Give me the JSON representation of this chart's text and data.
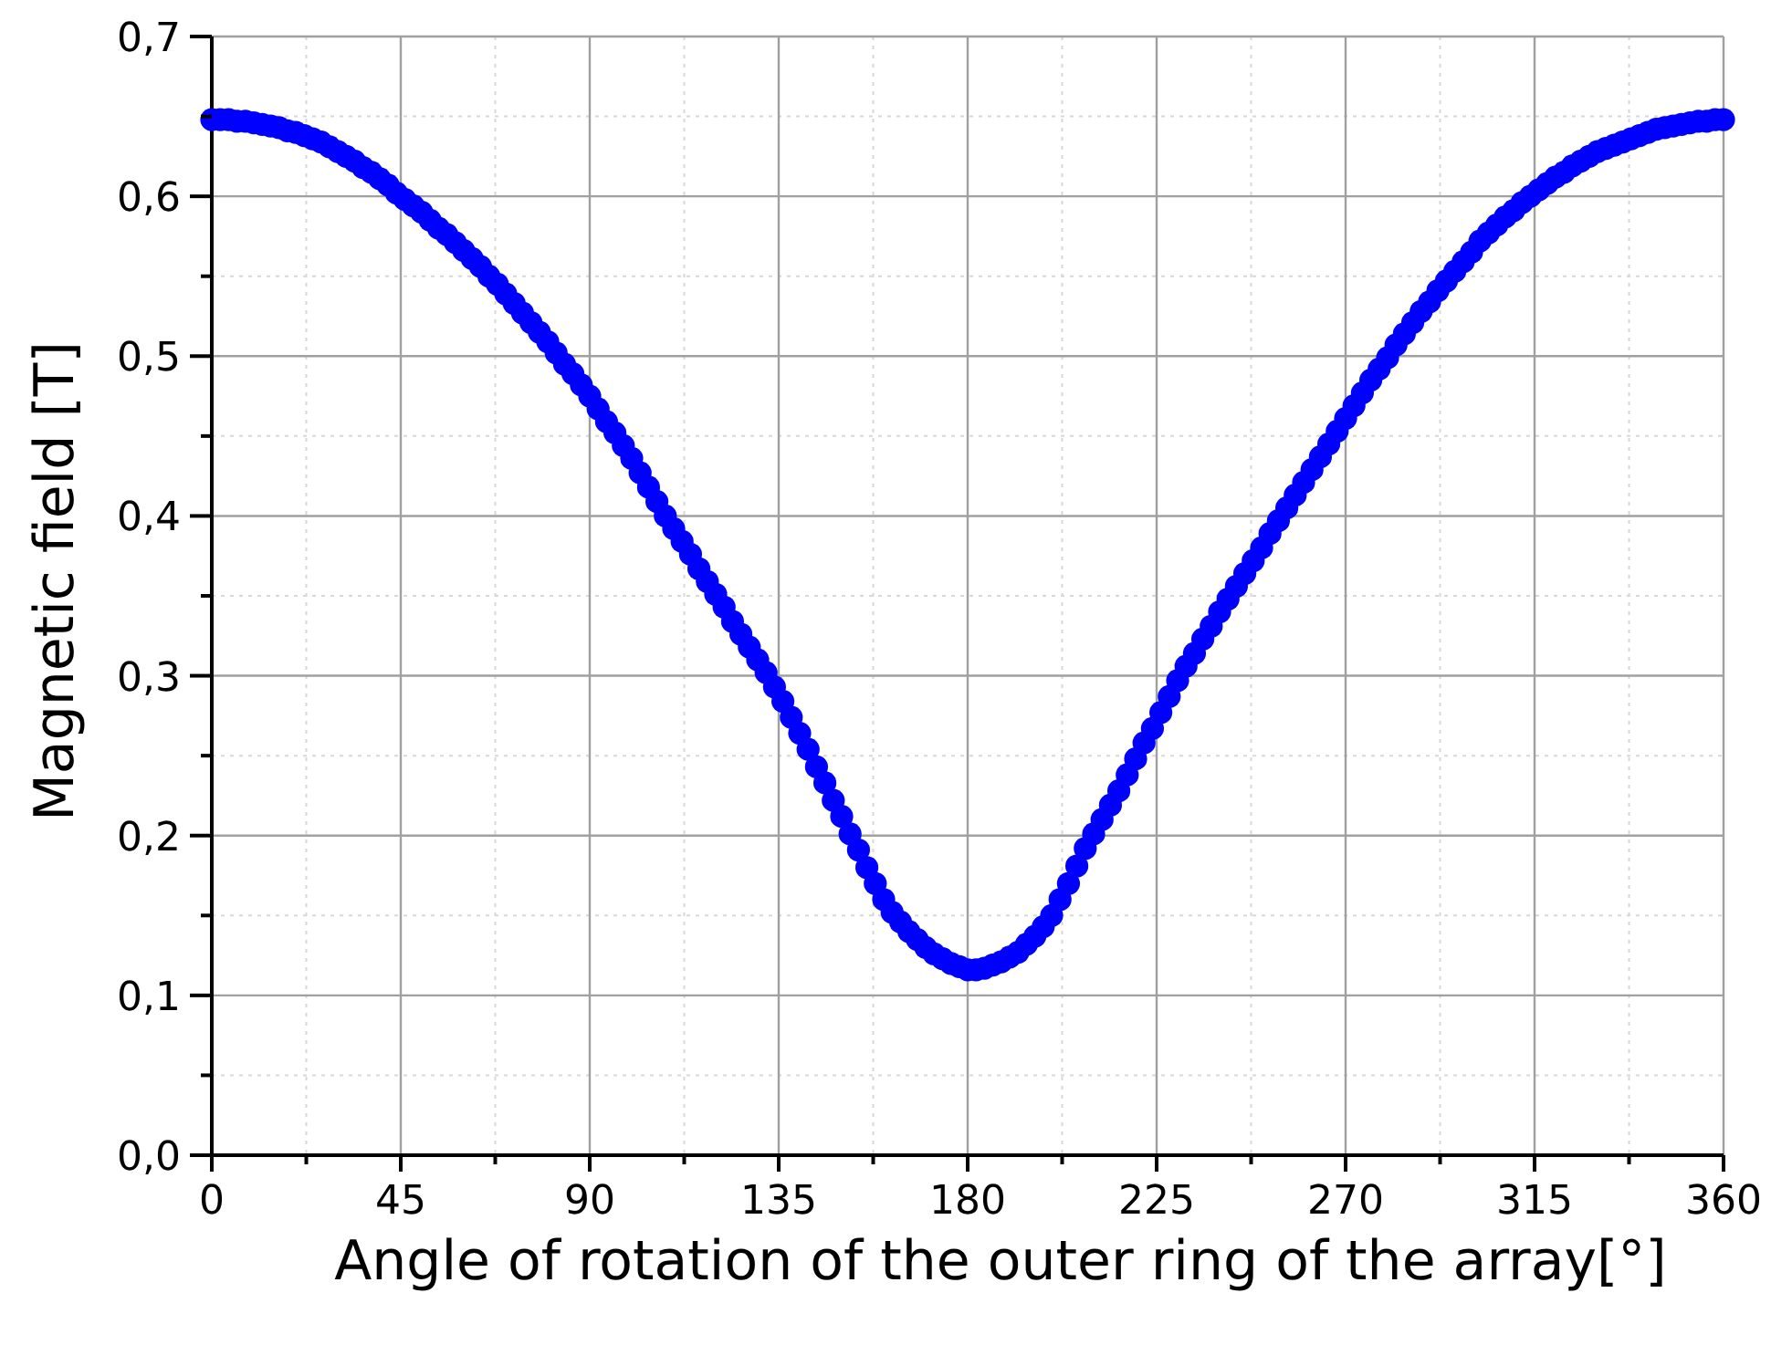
{
  "chart_data": {
    "type": "scatter",
    "xlabel": "Angle of rotation of the outer ring of the array[°]",
    "ylabel": "Magnetic field [T]",
    "x": [
      0,
      2,
      4,
      6,
      8,
      10,
      12,
      14,
      16,
      18,
      20,
      22,
      24,
      26,
      28,
      30,
      32,
      34,
      36,
      38,
      40,
      42,
      44,
      46,
      48,
      50,
      52,
      54,
      56,
      58,
      60,
      62,
      64,
      66,
      68,
      70,
      72,
      74,
      76,
      78,
      80,
      82,
      84,
      86,
      88,
      90,
      92,
      94,
      96,
      98,
      100,
      102,
      104,
      106,
      108,
      110,
      112,
      114,
      116,
      118,
      120,
      122,
      124,
      126,
      128,
      130,
      132,
      134,
      136,
      138,
      140,
      142,
      144,
      146,
      148,
      150,
      152,
      154,
      156,
      158,
      160,
      162,
      164,
      166,
      168,
      170,
      172,
      174,
      176,
      178,
      180,
      182,
      184,
      186,
      188,
      190,
      192,
      194,
      196,
      198,
      200,
      202,
      204,
      206,
      208,
      210,
      212,
      214,
      216,
      218,
      220,
      222,
      224,
      226,
      228,
      230,
      232,
      234,
      236,
      238,
      240,
      242,
      244,
      246,
      248,
      250,
      252,
      254,
      256,
      258,
      260,
      262,
      264,
      266,
      268,
      270,
      272,
      274,
      276,
      278,
      280,
      282,
      284,
      286,
      288,
      290,
      292,
      294,
      296,
      298,
      300,
      302,
      304,
      306,
      308,
      310,
      312,
      314,
      316,
      318,
      320,
      322,
      324,
      326,
      328,
      330,
      332,
      334,
      336,
      338,
      340,
      342,
      344,
      346,
      348,
      350,
      352,
      354,
      356,
      358,
      360
    ],
    "values": [
      0.648,
      0.648,
      0.648,
      0.647,
      0.647,
      0.646,
      0.645,
      0.644,
      0.643,
      0.641,
      0.64,
      0.638,
      0.636,
      0.634,
      0.631,
      0.628,
      0.625,
      0.622,
      0.618,
      0.615,
      0.611,
      0.607,
      0.602,
      0.598,
      0.594,
      0.59,
      0.585,
      0.58,
      0.576,
      0.571,
      0.566,
      0.561,
      0.556,
      0.55,
      0.545,
      0.539,
      0.533,
      0.527,
      0.521,
      0.515,
      0.509,
      0.502,
      0.495,
      0.489,
      0.482,
      0.475,
      0.467,
      0.459,
      0.452,
      0.444,
      0.436,
      0.427,
      0.418,
      0.409,
      0.4,
      0.392,
      0.384,
      0.376,
      0.367,
      0.359,
      0.351,
      0.343,
      0.334,
      0.326,
      0.318,
      0.31,
      0.302,
      0.293,
      0.284,
      0.274,
      0.264,
      0.254,
      0.243,
      0.233,
      0.222,
      0.212,
      0.201,
      0.191,
      0.18,
      0.17,
      0.16,
      0.152,
      0.146,
      0.14,
      0.135,
      0.13,
      0.126,
      0.123,
      0.12,
      0.118,
      0.116,
      0.116,
      0.117,
      0.119,
      0.121,
      0.124,
      0.127,
      0.132,
      0.137,
      0.143,
      0.15,
      0.16,
      0.17,
      0.181,
      0.192,
      0.201,
      0.21,
      0.219,
      0.228,
      0.238,
      0.248,
      0.258,
      0.267,
      0.277,
      0.287,
      0.297,
      0.306,
      0.314,
      0.323,
      0.331,
      0.34,
      0.348,
      0.356,
      0.364,
      0.372,
      0.38,
      0.389,
      0.397,
      0.405,
      0.413,
      0.421,
      0.429,
      0.437,
      0.445,
      0.453,
      0.461,
      0.469,
      0.477,
      0.485,
      0.492,
      0.499,
      0.507,
      0.514,
      0.521,
      0.528,
      0.534,
      0.541,
      0.547,
      0.553,
      0.559,
      0.565,
      0.572,
      0.577,
      0.582,
      0.587,
      0.591,
      0.596,
      0.6,
      0.604,
      0.608,
      0.612,
      0.615,
      0.619,
      0.622,
      0.625,
      0.628,
      0.63,
      0.632,
      0.634,
      0.636,
      0.638,
      0.64,
      0.642,
      0.643,
      0.644,
      0.645,
      0.646,
      0.647,
      0.647,
      0.648,
      0.648
    ],
    "color": "#0000ff",
    "marker": "circle",
    "xlim": [
      0,
      360
    ],
    "xticks": [
      0,
      {
        "value": 22.5,
        "label": null
      },
      45,
      {
        "value": 67.5,
        "label": null
      },
      90,
      {
        "value": 112.5,
        "label": null
      },
      135,
      {
        "value": 157.5,
        "label": null
      },
      180,
      {
        "value": 202.5,
        "label": null
      },
      225,
      {
        "value": 247.5,
        "label": null
      },
      270,
      {
        "value": 292.5,
        "label": null
      },
      315,
      {
        "value": 337.5,
        "label": null
      },
      360
    ],
    "ylim": [
      0,
      0.7
    ],
    "yticks": [
      {
        "value": 0,
        "label": "0,0"
      },
      {
        "value": 0.05,
        "label": null
      },
      {
        "value": 0.1,
        "label": "0,1"
      },
      {
        "value": 0.15,
        "label": null
      },
      {
        "value": 0.2,
        "label": "0,2"
      },
      {
        "value": 0.25,
        "label": null
      },
      {
        "value": 0.3,
        "label": "0,3"
      },
      {
        "value": 0.35,
        "label": null
      },
      {
        "value": 0.4,
        "label": "0,4"
      },
      {
        "value": 0.45,
        "label": null
      },
      {
        "value": 0.5,
        "label": "0,5"
      },
      {
        "value": 0.55,
        "label": null
      },
      {
        "value": 0.6,
        "label": "0,6"
      },
      {
        "value": 0.65,
        "label": null
      },
      {
        "value": 0.7,
        "label": "0,7"
      }
    ],
    "grid": true
  }
}
